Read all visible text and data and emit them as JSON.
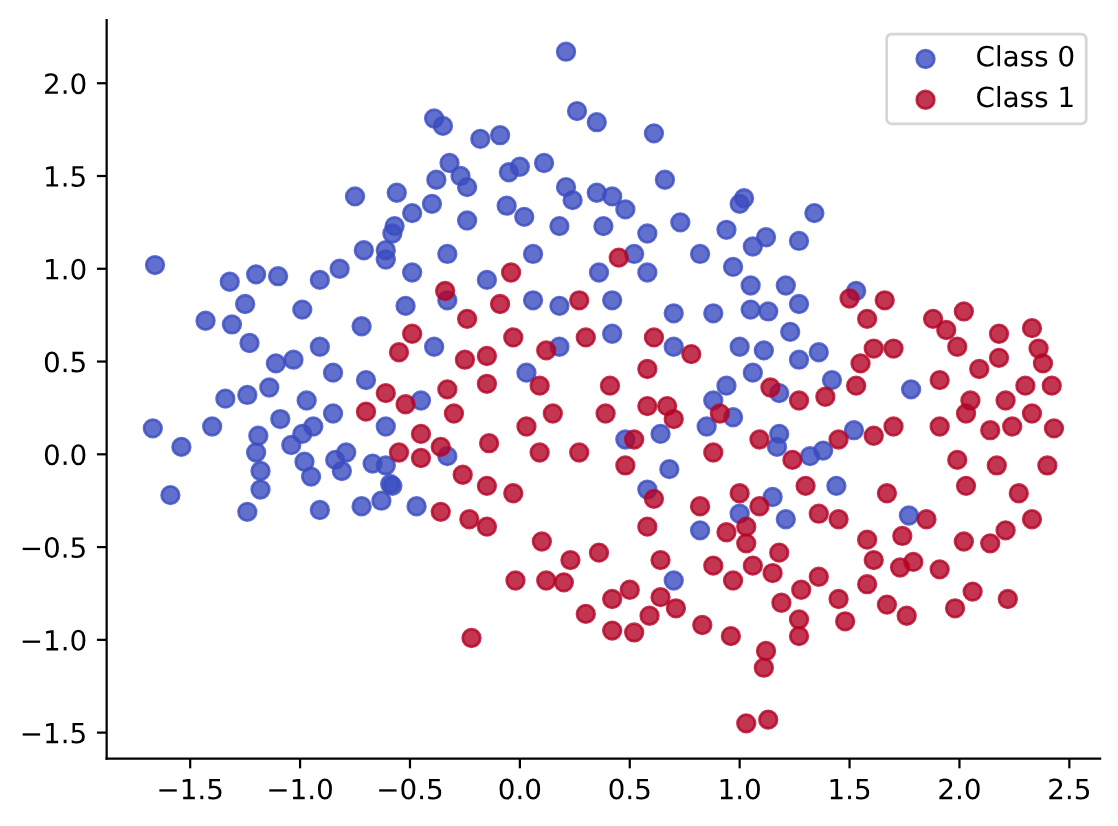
{
  "chart_data": {
    "type": "scatter",
    "marker": "circle",
    "legend": "top right",
    "xlim": [
      -1.88,
      2.64
    ],
    "ylim": [
      -1.64,
      2.34
    ],
    "xticks": [
      {
        "value": -1.5,
        "label": "−1.5"
      },
      {
        "value": -1.0,
        "label": "−1.0"
      },
      {
        "value": -0.5,
        "label": "−0.5"
      },
      {
        "value": 0.0,
        "label": "0.0"
      },
      {
        "value": 0.5,
        "label": "0.5"
      },
      {
        "value": 1.0,
        "label": "1.0"
      },
      {
        "value": 1.5,
        "label": "1.5"
      },
      {
        "value": 2.0,
        "label": "2.0"
      },
      {
        "value": 2.5,
        "label": "2.5"
      }
    ],
    "yticks": [
      {
        "value": -1.5,
        "label": "−1.5"
      },
      {
        "value": -1.0,
        "label": "−1.0"
      },
      {
        "value": -0.5,
        "label": "−0.5"
      },
      {
        "value": 0.0,
        "label": "0.0"
      },
      {
        "value": 0.5,
        "label": "0.5"
      },
      {
        "value": 1.0,
        "label": "1.0"
      },
      {
        "value": 1.5,
        "label": "1.5"
      },
      {
        "value": 2.0,
        "label": "2.0"
      }
    ],
    "series": [
      {
        "name": "Class 0",
        "color": "#3b4cc0",
        "x": [
          -1.66,
          -0.75,
          -0.56,
          -1.2,
          -1.1,
          -1.32,
          -1.43,
          -1.31,
          -1.23,
          -1.25,
          -1.11,
          -1.34,
          -1.24,
          -1.14,
          -0.99,
          -0.91,
          -0.82,
          -0.71,
          -0.61,
          -0.57,
          -0.72,
          -0.91,
          -1.03,
          -0.85,
          -0.7,
          -0.97,
          -1.67,
          -1.54,
          -1.4,
          -1.59,
          -1.24,
          -1.18,
          -1.18,
          -1.2,
          -1.19,
          -1.09,
          -1.04,
          -0.98,
          -0.95,
          -0.91,
          -0.84,
          -0.81,
          -0.79,
          -0.72,
          -0.63,
          -0.67,
          -0.61,
          -0.59,
          -0.85,
          -0.94,
          -0.99,
          0.21,
          0.26,
          0.35,
          0.61,
          0.66,
          -0.39,
          -0.35,
          -0.18,
          -0.09,
          0.11,
          0.0,
          -0.05,
          -0.32,
          -0.38,
          -0.27,
          -0.24,
          -0.4,
          -0.49,
          0.21,
          0.24,
          0.35,
          0.42,
          0.48,
          1.0,
          1.02,
          -0.06,
          0.02,
          -0.24,
          0.18,
          0.38,
          0.58,
          0.73,
          0.94,
          -0.58,
          -0.33,
          0.06,
          0.52,
          0.82,
          1.06,
          -0.61,
          -0.49,
          -0.15,
          0.36,
          0.58,
          0.97,
          -0.52,
          -0.33,
          0.06,
          0.18,
          0.42,
          0.7,
          0.88,
          1.05,
          -0.39,
          0.18,
          0.42,
          0.7,
          1.0,
          0.03,
          0.94,
          0.88,
          -0.45,
          1.34,
          1.27,
          1.12,
          1.05,
          1.21,
          1.27,
          1.13,
          1.23,
          1.11,
          1.27,
          1.36,
          1.42,
          1.53,
          1.78,
          1.06,
          1.18,
          1.52,
          1.32,
          1.38,
          1.18,
          1.17,
          1.44,
          1.15,
          1.21,
          1.77,
          -0.47,
          -0.58,
          -0.33,
          0.7,
          0.58,
          0.82,
          0.68,
          0.48,
          0.64,
          0.85,
          0.97,
          1.0,
          -0.61
        ],
        "values": [
          1.02,
          1.39,
          1.41,
          0.97,
          0.96,
          0.93,
          0.72,
          0.7,
          0.6,
          0.81,
          0.49,
          0.3,
          0.32,
          0.36,
          0.78,
          0.94,
          1.0,
          1.1,
          1.1,
          1.23,
          0.69,
          0.58,
          0.51,
          0.44,
          0.4,
          0.29,
          0.14,
          0.04,
          0.15,
          -0.22,
          -0.31,
          -0.09,
          -0.19,
          0.01,
          0.1,
          0.19,
          0.05,
          -0.04,
          -0.12,
          -0.3,
          -0.03,
          -0.09,
          0.01,
          -0.28,
          -0.25,
          -0.05,
          -0.06,
          -0.16,
          0.22,
          0.15,
          0.11,
          2.17,
          1.85,
          1.79,
          1.73,
          1.48,
          1.81,
          1.77,
          1.7,
          1.72,
          1.57,
          1.55,
          1.52,
          1.57,
          1.48,
          1.5,
          1.44,
          1.35,
          1.3,
          1.44,
          1.37,
          1.41,
          1.39,
          1.32,
          1.35,
          1.38,
          1.34,
          1.28,
          1.26,
          1.23,
          1.23,
          1.19,
          1.25,
          1.21,
          1.19,
          1.08,
          1.08,
          1.08,
          1.08,
          1.12,
          1.05,
          0.98,
          0.94,
          0.98,
          0.98,
          1.01,
          0.8,
          0.83,
          0.83,
          0.8,
          0.83,
          0.76,
          0.76,
          0.78,
          0.58,
          0.58,
          0.65,
          0.58,
          0.58,
          0.44,
          0.37,
          0.29,
          0.29,
          1.3,
          1.15,
          1.17,
          0.91,
          0.91,
          0.81,
          0.77,
          0.66,
          0.56,
          0.51,
          0.55,
          0.4,
          0.88,
          0.35,
          0.44,
          0.33,
          0.13,
          -0.01,
          0.02,
          0.11,
          0.04,
          -0.17,
          -0.23,
          -0.35,
          -0.33,
          -0.28,
          -0.17,
          -0.01,
          -0.68,
          -0.19,
          -0.41,
          -0.08,
          0.08,
          0.11,
          0.15,
          0.2,
          -0.32,
          0.15
        ]
      },
      {
        "name": "Class 1",
        "color": "#b40426",
        "x": [
          -0.7,
          0.45,
          -0.04,
          -0.34,
          0.27,
          -0.09,
          -0.24,
          -0.49,
          -0.55,
          -0.03,
          0.3,
          0.61,
          0.78,
          -0.25,
          -0.15,
          0.12,
          0.58,
          -0.61,
          -0.52,
          -0.33,
          -0.15,
          0.41,
          0.09,
          0.67,
          1.5,
          1.66,
          1.58,
          2.02,
          1.88,
          1.94,
          2.18,
          2.33,
          2.36,
          2.38,
          2.42,
          1.61,
          1.7,
          1.99,
          2.18,
          1.55,
          2.09,
          1.53,
          1.91,
          2.3,
          1.14,
          1.27,
          1.39,
          2.21,
          2.05,
          2.4,
          2.43,
          2.33,
          2.21,
          2.14,
          2.22,
          2.06,
          1.98,
          2.02,
          1.91,
          1.79,
          1.73,
          1.76,
          1.67,
          1.58,
          1.48,
          1.45,
          1.28,
          1.27,
          1.27,
          1.19,
          1.12,
          1.11,
          1.13,
          1.03,
          1.61,
          1.36,
          1.58,
          1.74,
          2.27,
          2.17,
          2.24,
          2.14,
          2.03,
          1.99,
          1.85,
          1.45,
          1.36,
          1.18,
          1.15,
          1.06,
          1.03,
          1.67,
          1.3,
          1.09,
          1.24,
          1.45,
          1.61,
          1.7,
          1.91,
          2.03,
          2.33,
          1.09,
          -0.22,
          -0.02,
          0.12,
          0.2,
          0.3,
          0.42,
          0.52,
          0.42,
          0.59,
          0.71,
          0.83,
          0.96,
          0.64,
          0.5,
          0.23,
          0.1,
          -0.23,
          -0.36,
          -0.15,
          -0.26,
          -0.45,
          -0.45,
          -0.3,
          -0.14,
          0.03,
          0.15,
          0.39,
          -0.15,
          -0.03,
          0.61,
          0.82,
          0.94,
          1.03,
          0.36,
          0.64,
          0.88,
          0.97,
          0.58,
          0.48,
          0.88,
          0.52,
          0.7,
          0.58,
          0.91,
          -0.36,
          0.09,
          0.27,
          -0.55,
          1.0
        ],
        "values": [
          0.23,
          1.06,
          0.98,
          0.88,
          0.83,
          0.81,
          0.73,
          0.65,
          0.55,
          0.63,
          0.63,
          0.63,
          0.54,
          0.51,
          0.53,
          0.56,
          0.46,
          0.33,
          0.27,
          0.35,
          0.38,
          0.37,
          0.37,
          0.26,
          0.84,
          0.83,
          0.73,
          0.77,
          0.73,
          0.67,
          0.65,
          0.68,
          0.57,
          0.49,
          0.37,
          0.57,
          0.57,
          0.58,
          0.52,
          0.49,
          0.46,
          0.37,
          0.4,
          0.37,
          0.36,
          0.29,
          0.31,
          0.29,
          0.29,
          -0.06,
          0.14,
          -0.35,
          -0.41,
          -0.48,
          -0.78,
          -0.74,
          -0.83,
          -0.47,
          -0.62,
          -0.58,
          -0.61,
          -0.87,
          -0.81,
          -0.7,
          -0.9,
          -0.78,
          -0.73,
          -0.89,
          -0.98,
          -0.8,
          -1.06,
          -1.15,
          -1.43,
          -1.45,
          -0.57,
          -0.66,
          -0.46,
          -0.44,
          -0.21,
          -0.06,
          0.15,
          0.13,
          -0.17,
          -0.03,
          -0.35,
          -0.35,
          -0.32,
          -0.53,
          -0.64,
          -0.6,
          -0.48,
          -0.21,
          -0.17,
          -0.28,
          -0.03,
          0.08,
          0.1,
          0.15,
          0.15,
          0.22,
          0.22,
          0.08,
          -0.99,
          -0.68,
          -0.68,
          -0.69,
          -0.86,
          -0.95,
          -0.96,
          -0.78,
          -0.87,
          -0.83,
          -0.92,
          -0.98,
          -0.77,
          -0.73,
          -0.57,
          -0.47,
          -0.35,
          -0.31,
          -0.39,
          -0.11,
          -0.02,
          0.11,
          0.22,
          0.06,
          0.15,
          0.22,
          0.22,
          -0.17,
          -0.21,
          -0.24,
          -0.28,
          -0.42,
          -0.39,
          -0.53,
          -0.57,
          -0.6,
          -0.68,
          -0.39,
          -0.06,
          0.01,
          0.08,
          0.19,
          0.26,
          0.22,
          0.04,
          0.01,
          0.01,
          0.01,
          -0.21
        ]
      }
    ]
  }
}
